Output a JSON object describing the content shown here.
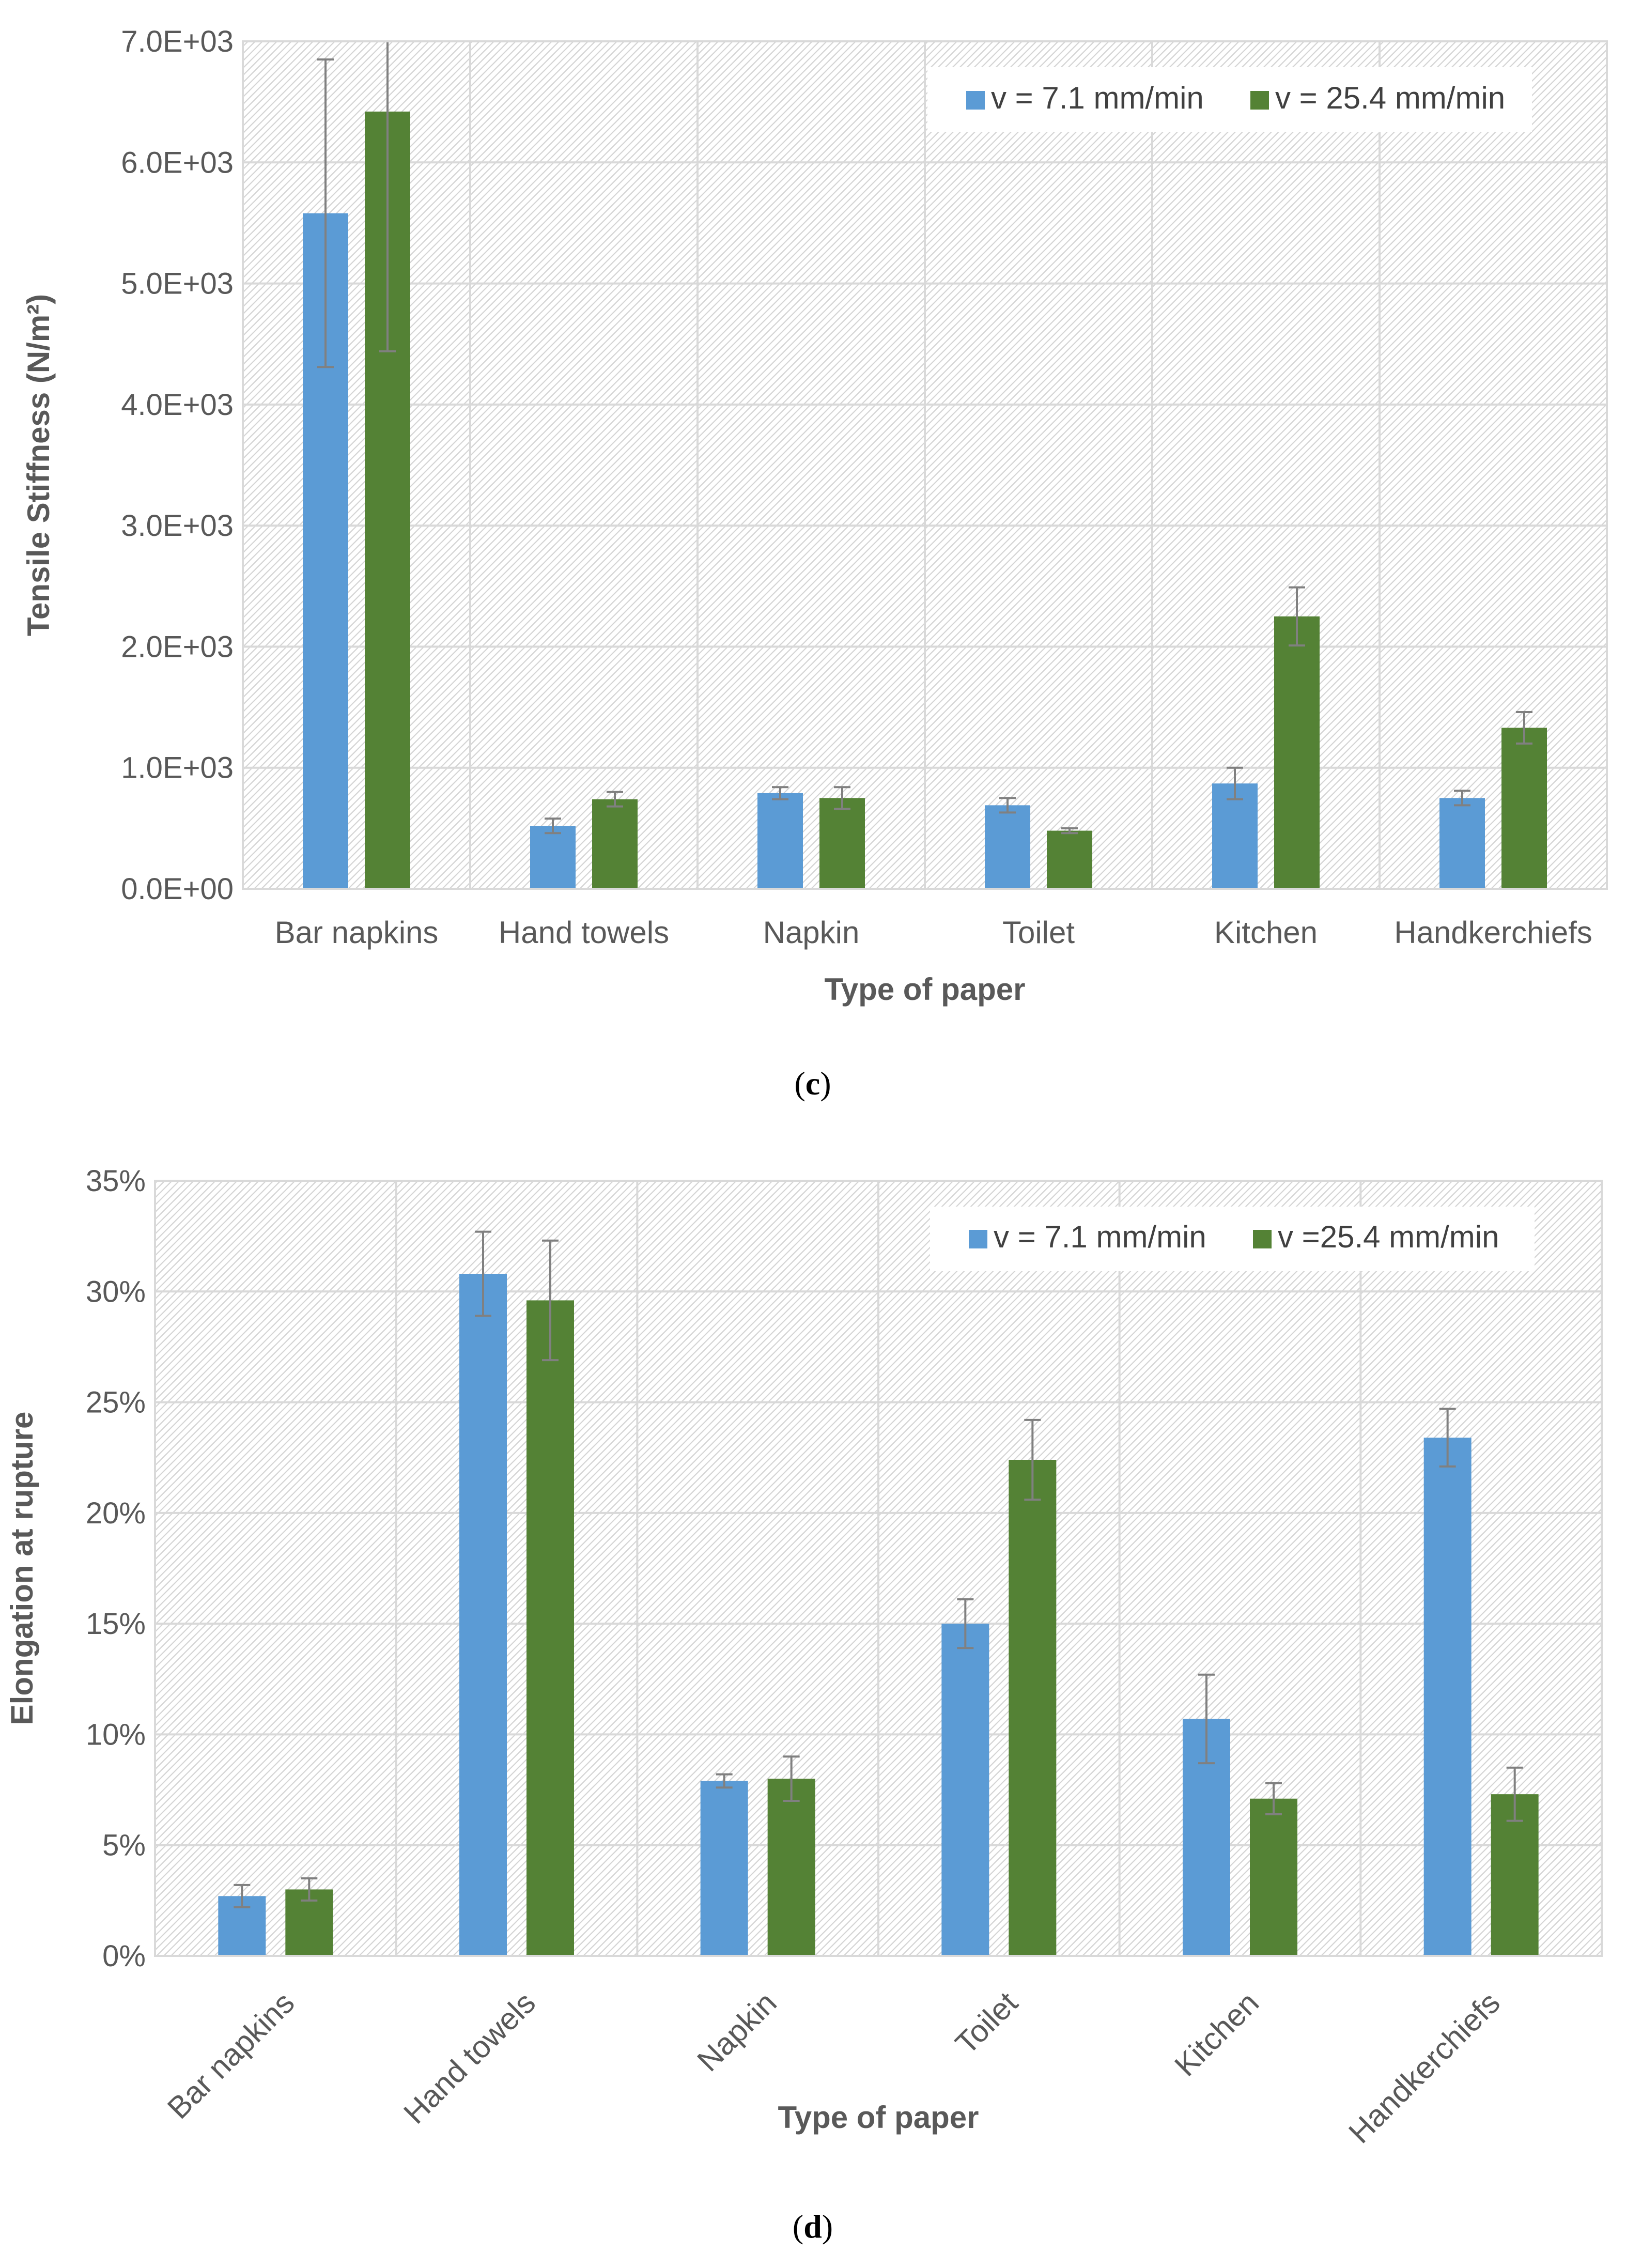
{
  "chart_data": [
    {
      "type": "bar",
      "panel_label": "c",
      "title": "",
      "xlabel": "Type of paper",
      "ylabel": "Tensile Stiffness (N/m²)",
      "ylim": [
        0,
        7000
      ],
      "yticks": [
        0,
        1000,
        2000,
        3000,
        4000,
        5000,
        6000,
        7000
      ],
      "ytick_labels": [
        "0.0E+00",
        "1.0E+03",
        "2.0E+03",
        "3.0E+03",
        "4.0E+03",
        "5.0E+03",
        "6.0E+03",
        "7.0E+03"
      ],
      "grid": true,
      "legend_position": "top-right",
      "categories": [
        "Bar napkins",
        "Hand towels",
        "Napkin",
        "Toilet",
        "Kitchen",
        "Handkerchiefs"
      ],
      "series": [
        {
          "name": "v = 7.1 mm/min",
          "color": "#5b9bd5",
          "values": [
            5580,
            520,
            790,
            690,
            870,
            750
          ],
          "errors": [
            1270,
            60,
            50,
            60,
            130,
            60
          ]
        },
        {
          "name": "v = 25.4 mm/min",
          "color": "#548235",
          "values": [
            6420,
            740,
            750,
            480,
            2250,
            1330
          ],
          "errors": [
            1980,
            60,
            90,
            20,
            240,
            130
          ]
        }
      ]
    },
    {
      "type": "bar",
      "panel_label": "d",
      "title": "",
      "xlabel": "Type of paper",
      "ylabel": "Elongation at rupture",
      "ylim": [
        0,
        35
      ],
      "yticks": [
        0,
        5,
        10,
        15,
        20,
        25,
        30,
        35
      ],
      "ytick_labels": [
        "0%",
        "5%",
        "10%",
        "15%",
        "20%",
        "25%",
        "30%",
        "35%"
      ],
      "grid": true,
      "legend_position": "top-right",
      "categories": [
        "Bar napkins",
        "Hand towels",
        "Napkin",
        "Toilet",
        "Kitchen",
        "Handkerchiefs"
      ],
      "series": [
        {
          "name": "v = 7.1 mm/min",
          "color": "#5b9bd5",
          "values": [
            2.7,
            30.8,
            7.9,
            15.0,
            10.7,
            23.4
          ],
          "errors": [
            0.5,
            1.9,
            0.3,
            1.1,
            2.0,
            1.3
          ]
        },
        {
          "name": "v =25.4 mm/min",
          "color": "#548235",
          "values": [
            3.0,
            29.6,
            8.0,
            22.4,
            7.1,
            7.3
          ],
          "errors": [
            0.5,
            2.7,
            1.0,
            1.8,
            0.7,
            1.2
          ]
        }
      ]
    }
  ]
}
